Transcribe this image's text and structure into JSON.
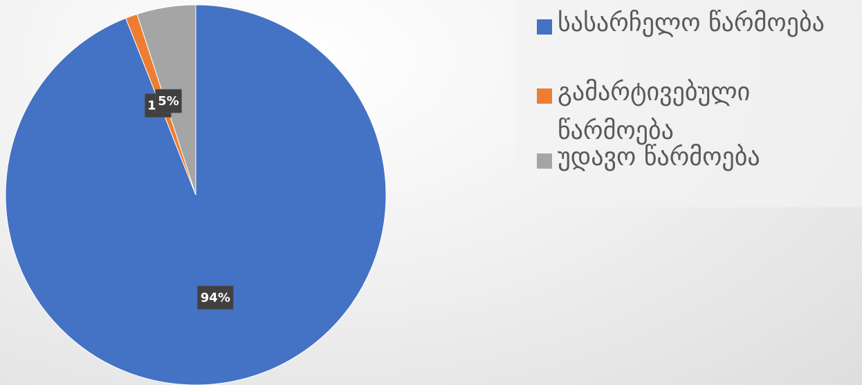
{
  "chart_data": {
    "type": "pie",
    "categories": [
      "სასარჩელო წარმოება",
      "გამარტივებული წარმოება",
      "უდავო წარმოება"
    ],
    "values": [
      94,
      1,
      5
    ],
    "data_labels": [
      "94%",
      "1%",
      "5%"
    ],
    "colors": [
      "#4472C4",
      "#ED7D31",
      "#A5A5A5"
    ],
    "legend_position": "right",
    "start_angle_degrees": 0,
    "direction": "clockwise"
  },
  "legend": {
    "items": [
      {
        "label": "სასარჩელო წარმოება",
        "color": "#4472C4"
      },
      {
        "label": "გამარტივებული წარმოება",
        "color": "#ED7D31"
      },
      {
        "label": "უდავო წარმოება",
        "color": "#A5A5A5"
      }
    ]
  }
}
